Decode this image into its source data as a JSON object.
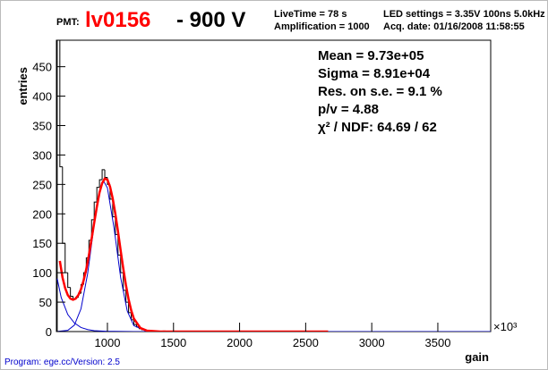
{
  "chart_data": {
    "type": "histogram",
    "header": {
      "pmt_label": "PMT:",
      "pmt_id": "lv0156",
      "voltage": "- 900 V",
      "live_time": "LiveTime = 78 s",
      "amplification": "Amplification = 1000",
      "led_settings": "LED settings = 3.35V 100ns 5.0kHz",
      "acq_date": "Acq. date:  01/16/2008 11:58:55"
    },
    "stats": [
      "Mean = 9.73e+05",
      "Sigma = 8.91e+04",
      "Res. on s.e. =   9.1 %",
      "p/v =  4.88",
      "χ² / NDF:    64.69 / 62"
    ],
    "y_label": "entries",
    "x_label": "gain",
    "x_multiplier": "×10³",
    "footer": "Program: ege.cc/Version: 2.5",
    "color": "#000000",
    "bins": [
      620,
      640,
      660,
      680,
      700,
      720,
      740,
      760,
      780,
      800,
      820,
      840,
      860,
      880,
      900,
      920,
      940,
      960,
      980,
      1000,
      1020,
      1040,
      1060,
      1080,
      1100,
      1120,
      1140,
      1160,
      1180,
      1200,
      1220,
      1240,
      1260,
      1280,
      1300,
      1320,
      1340,
      1360,
      1380,
      1400,
      1420,
      1440,
      1460,
      1480,
      1500
    ],
    "values": [
      520,
      280,
      150,
      100,
      75,
      60,
      55,
      58,
      65,
      80,
      100,
      125,
      155,
      190,
      220,
      245,
      258,
      275,
      262,
      250,
      225,
      195,
      165,
      130,
      100,
      70,
      50,
      32,
      20,
      12,
      8,
      5,
      3,
      2,
      1,
      1,
      0,
      1,
      0,
      0,
      1,
      0,
      0,
      0
    ],
    "curves": [
      {
        "color": "#0000cc",
        "x": [
          620,
          650,
          700,
          750,
          800,
          850,
          900,
          1000,
          1200,
          1500,
          2000,
          3900
        ],
        "values": [
          90,
          58,
          29,
          14.6,
          6.9,
          3.4,
          1.6,
          0.4,
          0,
          0,
          0,
          0
        ]
      },
      {
        "color": "#0000cc",
        "x": [
          620,
          700,
          750,
          800,
          850,
          900,
          950,
          973,
          1000,
          1050,
          1100,
          1150,
          1200,
          1300,
          1400,
          3900
        ],
        "values": [
          0.1,
          2,
          11,
          38.7,
          98,
          182,
          247,
          255,
          244,
          176,
          92,
          35,
          10,
          0.3,
          0,
          0
        ]
      },
      {
        "color": "#ff0000",
        "x": [
          640,
          660,
          680,
          700,
          720,
          740,
          760,
          780,
          800,
          820,
          840,
          860,
          880,
          900,
          920,
          940,
          960,
          980,
          1000,
          1020,
          1040,
          1060,
          1080,
          1100,
          1120,
          1140,
          1160,
          1180,
          1200,
          1250,
          1300,
          1400,
          1600,
          2000,
          2670
        ],
        "values": [
          120,
          92,
          74,
          62,
          56,
          54,
          56,
          62,
          72,
          87,
          106,
          130,
          157,
          185,
          212,
          236,
          252,
          260,
          258,
          246,
          226,
          200,
          170,
          138,
          107,
          79,
          55,
          36,
          22,
          6,
          1.5,
          0,
          0,
          0,
          0
        ]
      }
    ],
    "xlim": [
      614,
      3900
    ],
    "ylim": [
      0,
      495
    ],
    "xticks": [
      1000,
      1500,
      2000,
      2500,
      3000,
      3500
    ],
    "yticks": [
      0,
      50,
      100,
      150,
      200,
      250,
      300,
      350,
      400,
      450
    ]
  }
}
